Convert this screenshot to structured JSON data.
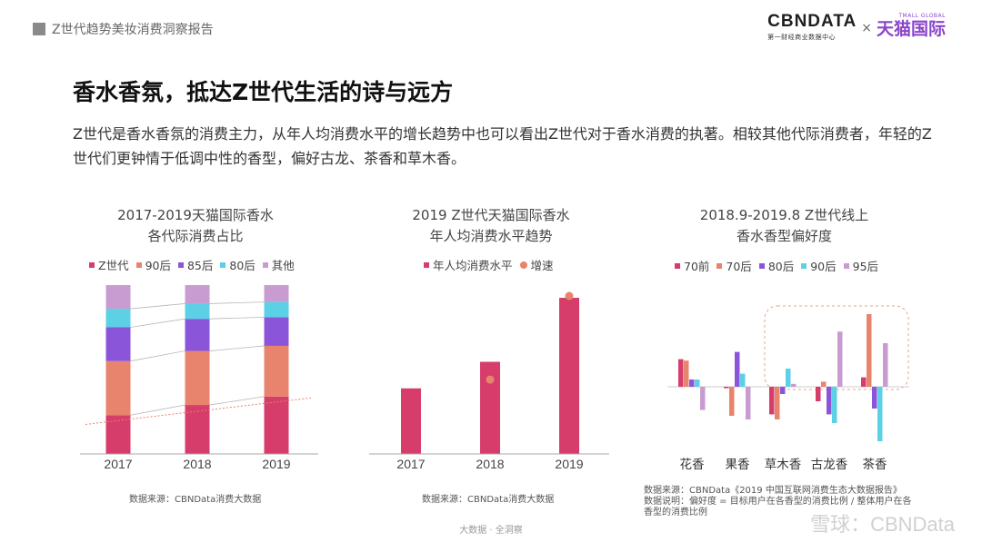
{
  "header": {
    "section_title": "Z世代趋势美妆消费洞察报告",
    "logo_cbn": "CBNDATA",
    "logo_cbn_sub": "第一财经商业数据中心",
    "logo_x": "×",
    "logo_tmall": "天猫国际",
    "logo_tmall_sub": "TMALL GLOBAL"
  },
  "headline": "香水香氛，抵达Z世代生活的诗与远方",
  "description": "Z世代是香水香氛的消费主力，从年人均消费水平的增长趋势中也可以看出Z世代对于香水消费的执著。相较其他代际消费者，年轻的Z世代们更钟情于低调中性的香型，偏好古龙、茶香和草木香。",
  "colors": {
    "z": "#d63d6b",
    "s90": "#e8836e",
    "s85": "#8b55d9",
    "s80": "#5cd1e6",
    "other": "#c99cd1",
    "growth_dot": "#e8836e",
    "highlight_border": "#e8a48b"
  },
  "chart_data": [
    {
      "type": "bar",
      "stacked": true,
      "percent": true,
      "title_line1": "2017-2019天猫国际香水",
      "title_line2": "各代际消费占比",
      "categories": [
        "2017",
        "2018",
        "2019"
      ],
      "series": [
        {
          "name": "Z世代",
          "values": [
            23,
            29,
            34
          ]
        },
        {
          "name": "90后",
          "values": [
            32,
            32,
            30
          ]
        },
        {
          "name": "85后",
          "values": [
            20,
            19,
            17
          ]
        },
        {
          "name": "80后",
          "values": [
            11,
            9,
            9
          ]
        },
        {
          "name": "其他",
          "values": [
            14,
            11,
            10
          ]
        }
      ],
      "ylim": [
        0,
        100
      ],
      "grid": false,
      "legend": "top",
      "source": "数据来源：CBNData消费大数据"
    },
    {
      "type": "bar",
      "title_line1": "2019 Z世代天猫国际香水",
      "title_line2": "年人均消费水平趋势",
      "categories": [
        "2017",
        "2018",
        "2019"
      ],
      "series": [
        {
          "name": "年人均消费水平",
          "values": [
            42,
            59,
            100
          ]
        },
        {
          "name": "增速",
          "values": [
            null,
            48,
            102
          ]
        }
      ],
      "ylim": [
        0,
        100
      ],
      "grid": false,
      "legend": "top",
      "source": "数据来源：CBNData消费大数据"
    },
    {
      "type": "bar",
      "title_line1": "2018.9-2019.8 Z世代线上",
      "title_line2": "香水香型偏好度",
      "categories": [
        "花香",
        "果香",
        "草木香",
        "古龙香",
        "茶香"
      ],
      "series": [
        {
          "name": "70前",
          "values": [
            0.38,
            -0.02,
            -0.38,
            -0.2,
            0.13
          ]
        },
        {
          "name": "70后",
          "values": [
            0.36,
            -0.4,
            -0.45,
            0.07,
            1.0
          ]
        },
        {
          "name": "80后",
          "values": [
            0.1,
            0.48,
            -0.1,
            -0.38,
            -0.3
          ]
        },
        {
          "name": "90后",
          "values": [
            0.1,
            0.18,
            0.25,
            -0.5,
            -0.75
          ]
        },
        {
          "name": "95后",
          "values": [
            -0.32,
            -0.45,
            0.04,
            0.76,
            0.6
          ]
        }
      ],
      "ylim": [
        -0.9,
        1.1
      ],
      "grid": false,
      "legend": "top",
      "source": "数据来源：CBNData《2019 中国互联网消费生态大数据报告》",
      "note": "数据说明：偏好度 = 目标用户在各香型的消费比例 / 整体用户在各香型的消费比例"
    }
  ],
  "footer": "大数据 · 全洞察",
  "watermark": "雪球：CBNData"
}
